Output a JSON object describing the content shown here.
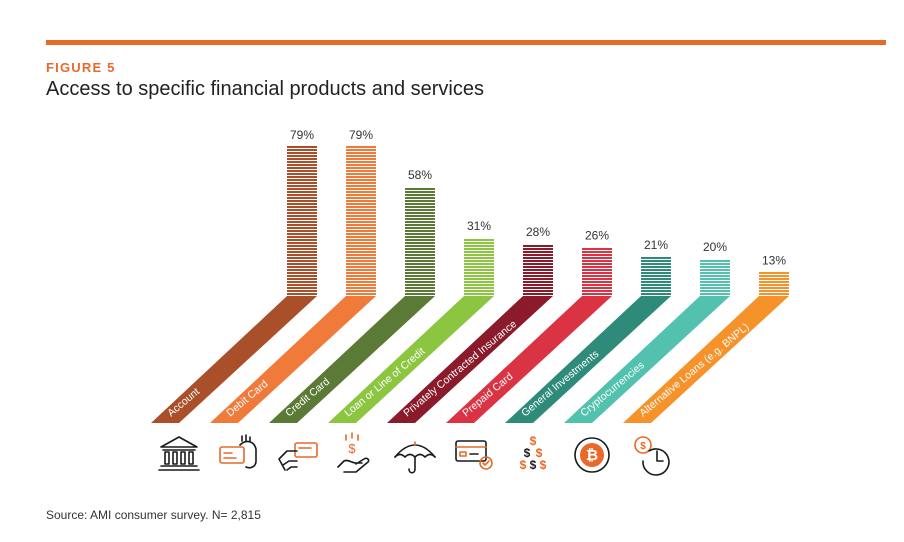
{
  "figure": {
    "label": "FIGURE 5",
    "title": "Access to specific financial products and services",
    "source": "Source: AMI consumer survey. N= 2,815",
    "accent_color": "#E8692A"
  },
  "chart_data": {
    "type": "bar",
    "title": "Access to specific financial products and services",
    "categories": [
      "Account",
      "Debit Card",
      "Credit Card",
      "Loan or Line of Credit",
      "Privately Contracted Insurance",
      "Prepaid Card",
      "General Investments",
      "Cryptocurrencies",
      "Alternative Loans (e.g. BNPL)"
    ],
    "values": [
      79,
      79,
      58,
      31,
      28,
      26,
      21,
      20,
      13
    ],
    "value_labels": [
      "79%",
      "79%",
      "58%",
      "31%",
      "28%",
      "26%",
      "21%",
      "20%",
      "13%"
    ],
    "colors": [
      "#A9502A",
      "#F07A3A",
      "#5A7A35",
      "#8CC540",
      "#8B1A2B",
      "#D93344",
      "#2E8B7A",
      "#52C2AE",
      "#F5922A"
    ],
    "icons": [
      "bank-icon",
      "card-in-hand-icon",
      "card-payment-icon",
      "money-hand-icon",
      "umbrella-icon",
      "card-check-icon",
      "dollar-signs-icon",
      "bitcoin-icon",
      "dollar-clock-icon"
    ],
    "ylim": [
      0,
      79
    ],
    "grid": false,
    "legend": "none"
  }
}
